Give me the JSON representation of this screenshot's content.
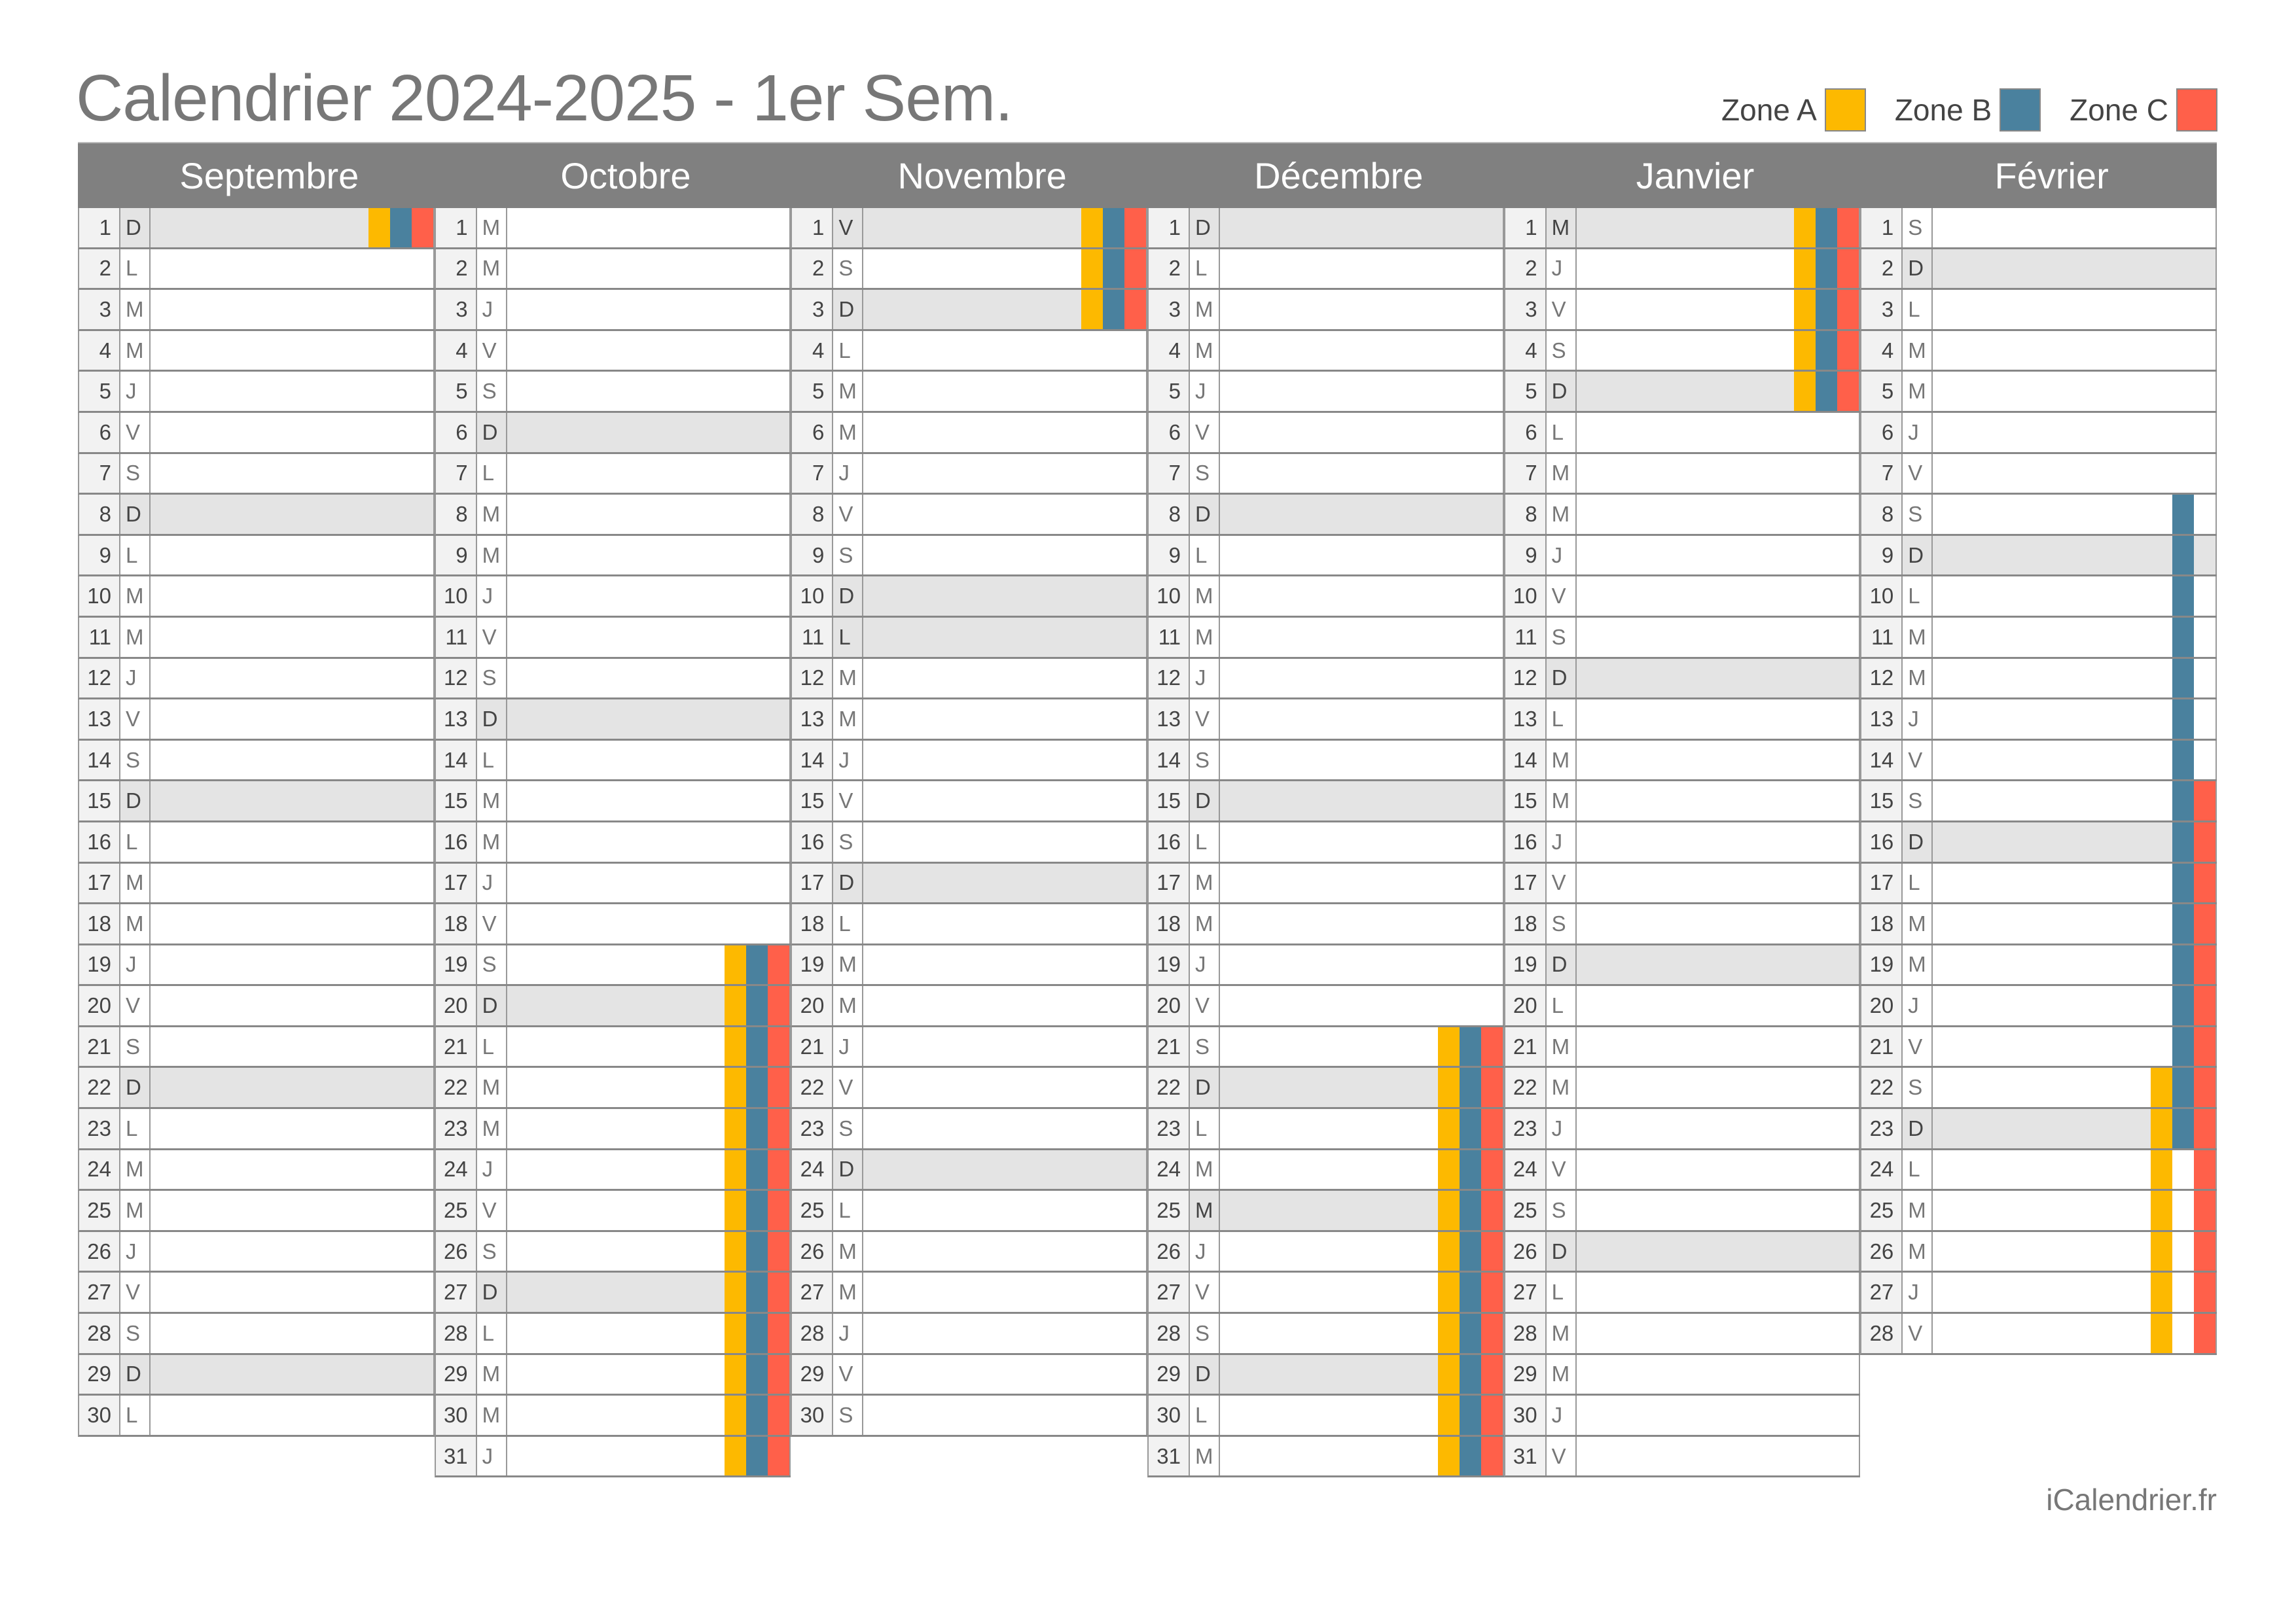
{
  "title": "Calendrier 2024-2025 - 1er Sem.",
  "legend": [
    {
      "label": "Zone A",
      "color": "#FDB900"
    },
    {
      "label": "Zone B",
      "color": "#4A819E"
    },
    {
      "label": "Zone C",
      "color": "#FF604A"
    }
  ],
  "zone_colors": {
    "A": "#FDB900",
    "B": "#4A819E",
    "C": "#FF604A"
  },
  "footer": "iCalendrier.fr",
  "months": [
    {
      "name": "Septembre",
      "days": [
        {
          "n": 1,
          "w": "D",
          "h": 1,
          "z": "ABC"
        },
        {
          "n": 2,
          "w": "L"
        },
        {
          "n": 3,
          "w": "M"
        },
        {
          "n": 4,
          "w": "M"
        },
        {
          "n": 5,
          "w": "J"
        },
        {
          "n": 6,
          "w": "V"
        },
        {
          "n": 7,
          "w": "S"
        },
        {
          "n": 8,
          "w": "D",
          "h": 1
        },
        {
          "n": 9,
          "w": "L"
        },
        {
          "n": 10,
          "w": "M"
        },
        {
          "n": 11,
          "w": "M"
        },
        {
          "n": 12,
          "w": "J"
        },
        {
          "n": 13,
          "w": "V"
        },
        {
          "n": 14,
          "w": "S"
        },
        {
          "n": 15,
          "w": "D",
          "h": 1
        },
        {
          "n": 16,
          "w": "L"
        },
        {
          "n": 17,
          "w": "M"
        },
        {
          "n": 18,
          "w": "M"
        },
        {
          "n": 19,
          "w": "J"
        },
        {
          "n": 20,
          "w": "V"
        },
        {
          "n": 21,
          "w": "S"
        },
        {
          "n": 22,
          "w": "D",
          "h": 1
        },
        {
          "n": 23,
          "w": "L"
        },
        {
          "n": 24,
          "w": "M"
        },
        {
          "n": 25,
          "w": "M"
        },
        {
          "n": 26,
          "w": "J"
        },
        {
          "n": 27,
          "w": "V"
        },
        {
          "n": 28,
          "w": "S"
        },
        {
          "n": 29,
          "w": "D",
          "h": 1
        },
        {
          "n": 30,
          "w": "L"
        }
      ]
    },
    {
      "name": "Octobre",
      "days": [
        {
          "n": 1,
          "w": "M"
        },
        {
          "n": 2,
          "w": "M"
        },
        {
          "n": 3,
          "w": "J"
        },
        {
          "n": 4,
          "w": "V"
        },
        {
          "n": 5,
          "w": "S"
        },
        {
          "n": 6,
          "w": "D",
          "h": 1
        },
        {
          "n": 7,
          "w": "L"
        },
        {
          "n": 8,
          "w": "M"
        },
        {
          "n": 9,
          "w": "M"
        },
        {
          "n": 10,
          "w": "J"
        },
        {
          "n": 11,
          "w": "V"
        },
        {
          "n": 12,
          "w": "S"
        },
        {
          "n": 13,
          "w": "D",
          "h": 1
        },
        {
          "n": 14,
          "w": "L"
        },
        {
          "n": 15,
          "w": "M"
        },
        {
          "n": 16,
          "w": "M"
        },
        {
          "n": 17,
          "w": "J"
        },
        {
          "n": 18,
          "w": "V"
        },
        {
          "n": 19,
          "w": "S",
          "z": "ABC"
        },
        {
          "n": 20,
          "w": "D",
          "h": 1,
          "z": "ABC"
        },
        {
          "n": 21,
          "w": "L",
          "z": "ABC"
        },
        {
          "n": 22,
          "w": "M",
          "z": "ABC"
        },
        {
          "n": 23,
          "w": "M",
          "z": "ABC"
        },
        {
          "n": 24,
          "w": "J",
          "z": "ABC"
        },
        {
          "n": 25,
          "w": "V",
          "z": "ABC"
        },
        {
          "n": 26,
          "w": "S",
          "z": "ABC"
        },
        {
          "n": 27,
          "w": "D",
          "h": 1,
          "z": "ABC"
        },
        {
          "n": 28,
          "w": "L",
          "z": "ABC"
        },
        {
          "n": 29,
          "w": "M",
          "z": "ABC"
        },
        {
          "n": 30,
          "w": "M",
          "z": "ABC"
        },
        {
          "n": 31,
          "w": "J",
          "z": "ABC"
        }
      ]
    },
    {
      "name": "Novembre",
      "days": [
        {
          "n": 1,
          "w": "V",
          "h": 1,
          "z": "ABC"
        },
        {
          "n": 2,
          "w": "S",
          "z": "ABC"
        },
        {
          "n": 3,
          "w": "D",
          "h": 1,
          "z": "ABC"
        },
        {
          "n": 4,
          "w": "L"
        },
        {
          "n": 5,
          "w": "M"
        },
        {
          "n": 6,
          "w": "M"
        },
        {
          "n": 7,
          "w": "J"
        },
        {
          "n": 8,
          "w": "V"
        },
        {
          "n": 9,
          "w": "S"
        },
        {
          "n": 10,
          "w": "D",
          "h": 1
        },
        {
          "n": 11,
          "w": "L",
          "h": 1
        },
        {
          "n": 12,
          "w": "M"
        },
        {
          "n": 13,
          "w": "M"
        },
        {
          "n": 14,
          "w": "J"
        },
        {
          "n": 15,
          "w": "V"
        },
        {
          "n": 16,
          "w": "S"
        },
        {
          "n": 17,
          "w": "D",
          "h": 1
        },
        {
          "n": 18,
          "w": "L"
        },
        {
          "n": 19,
          "w": "M"
        },
        {
          "n": 20,
          "w": "M"
        },
        {
          "n": 21,
          "w": "J"
        },
        {
          "n": 22,
          "w": "V"
        },
        {
          "n": 23,
          "w": "S"
        },
        {
          "n": 24,
          "w": "D",
          "h": 1
        },
        {
          "n": 25,
          "w": "L"
        },
        {
          "n": 26,
          "w": "M"
        },
        {
          "n": 27,
          "w": "M"
        },
        {
          "n": 28,
          "w": "J"
        },
        {
          "n": 29,
          "w": "V"
        },
        {
          "n": 30,
          "w": "S"
        }
      ]
    },
    {
      "name": "Décembre",
      "days": [
        {
          "n": 1,
          "w": "D",
          "h": 1
        },
        {
          "n": 2,
          "w": "L"
        },
        {
          "n": 3,
          "w": "M"
        },
        {
          "n": 4,
          "w": "M"
        },
        {
          "n": 5,
          "w": "J"
        },
        {
          "n": 6,
          "w": "V"
        },
        {
          "n": 7,
          "w": "S"
        },
        {
          "n": 8,
          "w": "D",
          "h": 1
        },
        {
          "n": 9,
          "w": "L"
        },
        {
          "n": 10,
          "w": "M"
        },
        {
          "n": 11,
          "w": "M"
        },
        {
          "n": 12,
          "w": "J"
        },
        {
          "n": 13,
          "w": "V"
        },
        {
          "n": 14,
          "w": "S"
        },
        {
          "n": 15,
          "w": "D",
          "h": 1
        },
        {
          "n": 16,
          "w": "L"
        },
        {
          "n": 17,
          "w": "M"
        },
        {
          "n": 18,
          "w": "M"
        },
        {
          "n": 19,
          "w": "J"
        },
        {
          "n": 20,
          "w": "V"
        },
        {
          "n": 21,
          "w": "S",
          "z": "ABC"
        },
        {
          "n": 22,
          "w": "D",
          "h": 1,
          "z": "ABC"
        },
        {
          "n": 23,
          "w": "L",
          "z": "ABC"
        },
        {
          "n": 24,
          "w": "M",
          "z": "ABC"
        },
        {
          "n": 25,
          "w": "M",
          "h": 1,
          "z": "ABC"
        },
        {
          "n": 26,
          "w": "J",
          "z": "ABC"
        },
        {
          "n": 27,
          "w": "V",
          "z": "ABC"
        },
        {
          "n": 28,
          "w": "S",
          "z": "ABC"
        },
        {
          "n": 29,
          "w": "D",
          "h": 1,
          "z": "ABC"
        },
        {
          "n": 30,
          "w": "L",
          "z": "ABC"
        },
        {
          "n": 31,
          "w": "M",
          "z": "ABC"
        }
      ]
    },
    {
      "name": "Janvier",
      "days": [
        {
          "n": 1,
          "w": "M",
          "h": 1,
          "z": "ABC"
        },
        {
          "n": 2,
          "w": "J",
          "z": "ABC"
        },
        {
          "n": 3,
          "w": "V",
          "z": "ABC"
        },
        {
          "n": 4,
          "w": "S",
          "z": "ABC"
        },
        {
          "n": 5,
          "w": "D",
          "h": 1,
          "z": "ABC"
        },
        {
          "n": 6,
          "w": "L"
        },
        {
          "n": 7,
          "w": "M"
        },
        {
          "n": 8,
          "w": "M"
        },
        {
          "n": 9,
          "w": "J"
        },
        {
          "n": 10,
          "w": "V"
        },
        {
          "n": 11,
          "w": "S"
        },
        {
          "n": 12,
          "w": "D",
          "h": 1
        },
        {
          "n": 13,
          "w": "L"
        },
        {
          "n": 14,
          "w": "M"
        },
        {
          "n": 15,
          "w": "M"
        },
        {
          "n": 16,
          "w": "J"
        },
        {
          "n": 17,
          "w": "V"
        },
        {
          "n": 18,
          "w": "S"
        },
        {
          "n": 19,
          "w": "D",
          "h": 1
        },
        {
          "n": 20,
          "w": "L"
        },
        {
          "n": 21,
          "w": "M"
        },
        {
          "n": 22,
          "w": "M"
        },
        {
          "n": 23,
          "w": "J"
        },
        {
          "n": 24,
          "w": "V"
        },
        {
          "n": 25,
          "w": "S"
        },
        {
          "n": 26,
          "w": "D",
          "h": 1
        },
        {
          "n": 27,
          "w": "L"
        },
        {
          "n": 28,
          "w": "M"
        },
        {
          "n": 29,
          "w": "M"
        },
        {
          "n": 30,
          "w": "J"
        },
        {
          "n": 31,
          "w": "V"
        }
      ]
    },
    {
      "name": "Février",
      "days": [
        {
          "n": 1,
          "w": "S"
        },
        {
          "n": 2,
          "w": "D",
          "h": 1
        },
        {
          "n": 3,
          "w": "L"
        },
        {
          "n": 4,
          "w": "M"
        },
        {
          "n": 5,
          "w": "M"
        },
        {
          "n": 6,
          "w": "J"
        },
        {
          "n": 7,
          "w": "V"
        },
        {
          "n": 8,
          "w": "S",
          "z": "B"
        },
        {
          "n": 9,
          "w": "D",
          "h": 1,
          "z": "B"
        },
        {
          "n": 10,
          "w": "L",
          "z": "B"
        },
        {
          "n": 11,
          "w": "M",
          "z": "B"
        },
        {
          "n": 12,
          "w": "M",
          "z": "B"
        },
        {
          "n": 13,
          "w": "J",
          "z": "B"
        },
        {
          "n": 14,
          "w": "V",
          "z": "B"
        },
        {
          "n": 15,
          "w": "S",
          "z": "BC"
        },
        {
          "n": 16,
          "w": "D",
          "h": 1,
          "z": "BC"
        },
        {
          "n": 17,
          "w": "L",
          "z": "BC"
        },
        {
          "n": 18,
          "w": "M",
          "z": "BC"
        },
        {
          "n": 19,
          "w": "M",
          "z": "BC"
        },
        {
          "n": 20,
          "w": "J",
          "z": "BC"
        },
        {
          "n": 21,
          "w": "V",
          "z": "BC"
        },
        {
          "n": 22,
          "w": "S",
          "z": "ABC"
        },
        {
          "n": 23,
          "w": "D",
          "h": 1,
          "z": "ABC"
        },
        {
          "n": 24,
          "w": "L",
          "z": "AC"
        },
        {
          "n": 25,
          "w": "M",
          "z": "AC"
        },
        {
          "n": 26,
          "w": "M",
          "z": "AC"
        },
        {
          "n": 27,
          "w": "J",
          "z": "AC"
        },
        {
          "n": 28,
          "w": "V",
          "z": "AC"
        }
      ]
    }
  ]
}
